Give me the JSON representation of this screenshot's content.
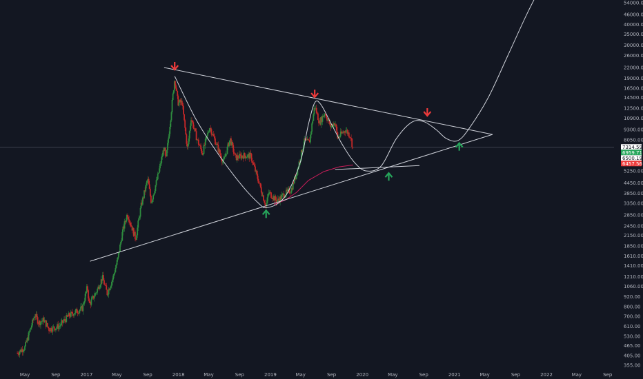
{
  "colors": {
    "background": "#131722",
    "up": "#26a69a",
    "down": "#ef5350",
    "up_candle": "#2e8b3e",
    "down_candle": "#c62828",
    "trendline": "#d1d4dc",
    "projection": "#d1d4dc",
    "ma": "#e91e63",
    "arrow_down": "#ef3b3b",
    "arrow_up": "#26a65b",
    "axis_text": "#b2b5be",
    "crosshair": "#787b86"
  },
  "chart_data": {
    "type": "candlestick",
    "y_scale": "log",
    "y_tick_labels": [
      "54000.00",
      "46000.00",
      "40000.00",
      "35000.00",
      "30000.00",
      "26000.00",
      "22000.00",
      "19000.00",
      "16500.00",
      "14500.00",
      "12500.00",
      "10900.00",
      "9300.00",
      "8050.00",
      "5250.00",
      "4450.00",
      "3850.00",
      "3350.00",
      "2850.00",
      "2450.00",
      "2150.00",
      "1850.00",
      "1610.00",
      "1410.00",
      "1210.00",
      "1060.00",
      "920.00",
      "800.00",
      "700.00",
      "610.00",
      "530.00",
      "465.00",
      "405.00",
      "355.00"
    ],
    "x_tick_labels": [
      "May",
      "Sep",
      "2017",
      "May",
      "Sep",
      "2018",
      "May",
      "Sep",
      "2019",
      "May",
      "Sep",
      "2020",
      "May",
      "Sep",
      "2021",
      "May",
      "Sep",
      "2022",
      "May",
      "Sep"
    ],
    "price_tags": [
      {
        "label": "7314.59",
        "value": 7314.59,
        "style": "white"
      },
      {
        "label": "6959.71",
        "value": 6959.71,
        "style": "green"
      },
      {
        "label": "6500.19",
        "value": 6500.19,
        "style": "white"
      },
      {
        "label": "6457.56",
        "value": 6457.56,
        "style": "red"
      }
    ],
    "crosshair_price": 7314.59,
    "price_path": [
      {
        "date": "2016-04-01",
        "close": 420
      },
      {
        "date": "2016-05-01",
        "close": 455
      },
      {
        "date": "2016-06-10",
        "close": 720
      },
      {
        "date": "2016-06-25",
        "close": 640
      },
      {
        "date": "2016-07-15",
        "close": 665
      },
      {
        "date": "2016-08-05",
        "close": 585
      },
      {
        "date": "2016-09-15",
        "close": 610
      },
      {
        "date": "2016-10-20",
        "close": 700
      },
      {
        "date": "2016-11-15",
        "close": 740
      },
      {
        "date": "2016-12-15",
        "close": 780
      },
      {
        "date": "2017-01-04",
        "close": 1050
      },
      {
        "date": "2017-01-12",
        "close": 820
      },
      {
        "date": "2017-02-10",
        "close": 990
      },
      {
        "date": "2017-03-05",
        "close": 1200
      },
      {
        "date": "2017-03-24",
        "close": 960
      },
      {
        "date": "2017-04-15",
        "close": 1180
      },
      {
        "date": "2017-05-05",
        "close": 1550
      },
      {
        "date": "2017-05-25",
        "close": 2300
      },
      {
        "date": "2017-06-12",
        "close": 2900
      },
      {
        "date": "2017-07-15",
        "close": 2050
      },
      {
        "date": "2017-08-05",
        "close": 3200
      },
      {
        "date": "2017-09-01",
        "close": 4700
      },
      {
        "date": "2017-09-15",
        "close": 3400
      },
      {
        "date": "2017-10-10",
        "close": 4800
      },
      {
        "date": "2017-11-05",
        "close": 7300
      },
      {
        "date": "2017-11-12",
        "close": 6000
      },
      {
        "date": "2017-11-28",
        "close": 10000
      },
      {
        "date": "2017-12-17",
        "close": 19000
      },
      {
        "date": "2017-12-30",
        "close": 13500
      },
      {
        "date": "2018-01-15",
        "close": 13600
      },
      {
        "date": "2018-02-06",
        "close": 7000
      },
      {
        "date": "2018-02-20",
        "close": 11000
      },
      {
        "date": "2018-03-15",
        "close": 8200
      },
      {
        "date": "2018-04-06",
        "close": 6700
      },
      {
        "date": "2018-05-05",
        "close": 9700
      },
      {
        "date": "2018-06-28",
        "close": 5900
      },
      {
        "date": "2018-07-25",
        "close": 8200
      },
      {
        "date": "2018-08-15",
        "close": 6300
      },
      {
        "date": "2018-09-15",
        "close": 6500
      },
      {
        "date": "2018-10-15",
        "close": 6450
      },
      {
        "date": "2018-11-20",
        "close": 4300
      },
      {
        "date": "2018-12-15",
        "close": 3200
      },
      {
        "date": "2018-12-25",
        "close": 3900
      },
      {
        "date": "2019-01-28",
        "close": 3450
      },
      {
        "date": "2019-02-25",
        "close": 3800
      },
      {
        "date": "2019-03-25",
        "close": 4050
      },
      {
        "date": "2019-04-15",
        "close": 5100
      },
      {
        "date": "2019-05-15",
        "close": 7900
      },
      {
        "date": "2019-06-05",
        "close": 7800
      },
      {
        "date": "2019-06-26",
        "close": 13000
      },
      {
        "date": "2019-07-15",
        "close": 10200
      },
      {
        "date": "2019-08-05",
        "close": 11800
      },
      {
        "date": "2019-08-28",
        "close": 9700
      },
      {
        "date": "2019-09-15",
        "close": 10300
      },
      {
        "date": "2019-09-25",
        "close": 8300
      },
      {
        "date": "2019-10-26",
        "close": 9300
      },
      {
        "date": "2019-11-15",
        "close": 8500
      },
      {
        "date": "2019-11-26",
        "close": 7000
      }
    ],
    "ma_line": [
      {
        "date": "2019-01-15",
        "value": 3300
      },
      {
        "date": "2019-03-01",
        "value": 3500
      },
      {
        "date": "2019-04-15",
        "value": 3900
      },
      {
        "date": "2019-06-01",
        "value": 4600
      },
      {
        "date": "2019-08-01",
        "value": 5200
      },
      {
        "date": "2019-10-01",
        "value": 5550
      },
      {
        "date": "2019-11-26",
        "value": 5700
      }
    ],
    "resistance_line": [
      {
        "date": "2017-11-05",
        "value": 22000
      },
      {
        "date": "2021-06-01",
        "value": 8700
      }
    ],
    "support_line": [
      {
        "date": "2017-01-15",
        "value": 1500
      },
      {
        "date": "2021-06-01",
        "value": 8700
      }
    ],
    "short_support_line": [
      {
        "date": "2019-09-15",
        "value": 5350
      },
      {
        "date": "2020-08-15",
        "value": 5650
      }
    ],
    "projection_curve": [
      {
        "date": "2017-12-17",
        "value": 19500
      },
      {
        "date": "2018-03-15",
        "value": 10500
      },
      {
        "date": "2018-06-15",
        "value": 6400
      },
      {
        "date": "2018-09-15",
        "value": 4200
      },
      {
        "date": "2018-11-20",
        "value": 3300
      },
      {
        "date": "2018-12-15",
        "value": 3150
      },
      {
        "date": "2019-02-01",
        "value": 3350
      },
      {
        "date": "2019-03-15",
        "value": 4000
      },
      {
        "date": "2019-05-01",
        "value": 6000
      },
      {
        "date": "2019-06-01",
        "value": 10000
      },
      {
        "date": "2019-06-26",
        "value": 13500
      },
      {
        "date": "2019-07-20",
        "value": 13200
      },
      {
        "date": "2019-09-01",
        "value": 10000
      },
      {
        "date": "2019-10-15",
        "value": 7500
      },
      {
        "date": "2019-12-01",
        "value": 5900
      },
      {
        "date": "2020-01-15",
        "value": 5250
      },
      {
        "date": "2020-03-15",
        "value": 5600
      },
      {
        "date": "2020-05-15",
        "value": 8200
      },
      {
        "date": "2020-07-15",
        "value": 10300
      },
      {
        "date": "2020-09-01",
        "value": 10400
      },
      {
        "date": "2020-10-20",
        "value": 9300
      },
      {
        "date": "2020-12-01",
        "value": 8200
      },
      {
        "date": "2021-01-15",
        "value": 8000
      },
      {
        "date": "2021-03-01",
        "value": 9500
      },
      {
        "date": "2021-05-15",
        "value": 14500
      },
      {
        "date": "2021-08-01",
        "value": 26000
      },
      {
        "date": "2021-10-15",
        "value": 46000
      },
      {
        "date": "2021-12-15",
        "value": 70000
      }
    ],
    "down_arrows": [
      {
        "date": "2017-12-17",
        "value": 22000
      },
      {
        "date": "2019-06-26",
        "value": 15000
      },
      {
        "date": "2020-09-15",
        "value": 11600
      }
    ],
    "up_arrows": [
      {
        "date": "2018-12-15",
        "value": 2950
      },
      {
        "date": "2020-04-15",
        "value": 4950
      },
      {
        "date": "2021-01-20",
        "value": 7500
      }
    ]
  }
}
